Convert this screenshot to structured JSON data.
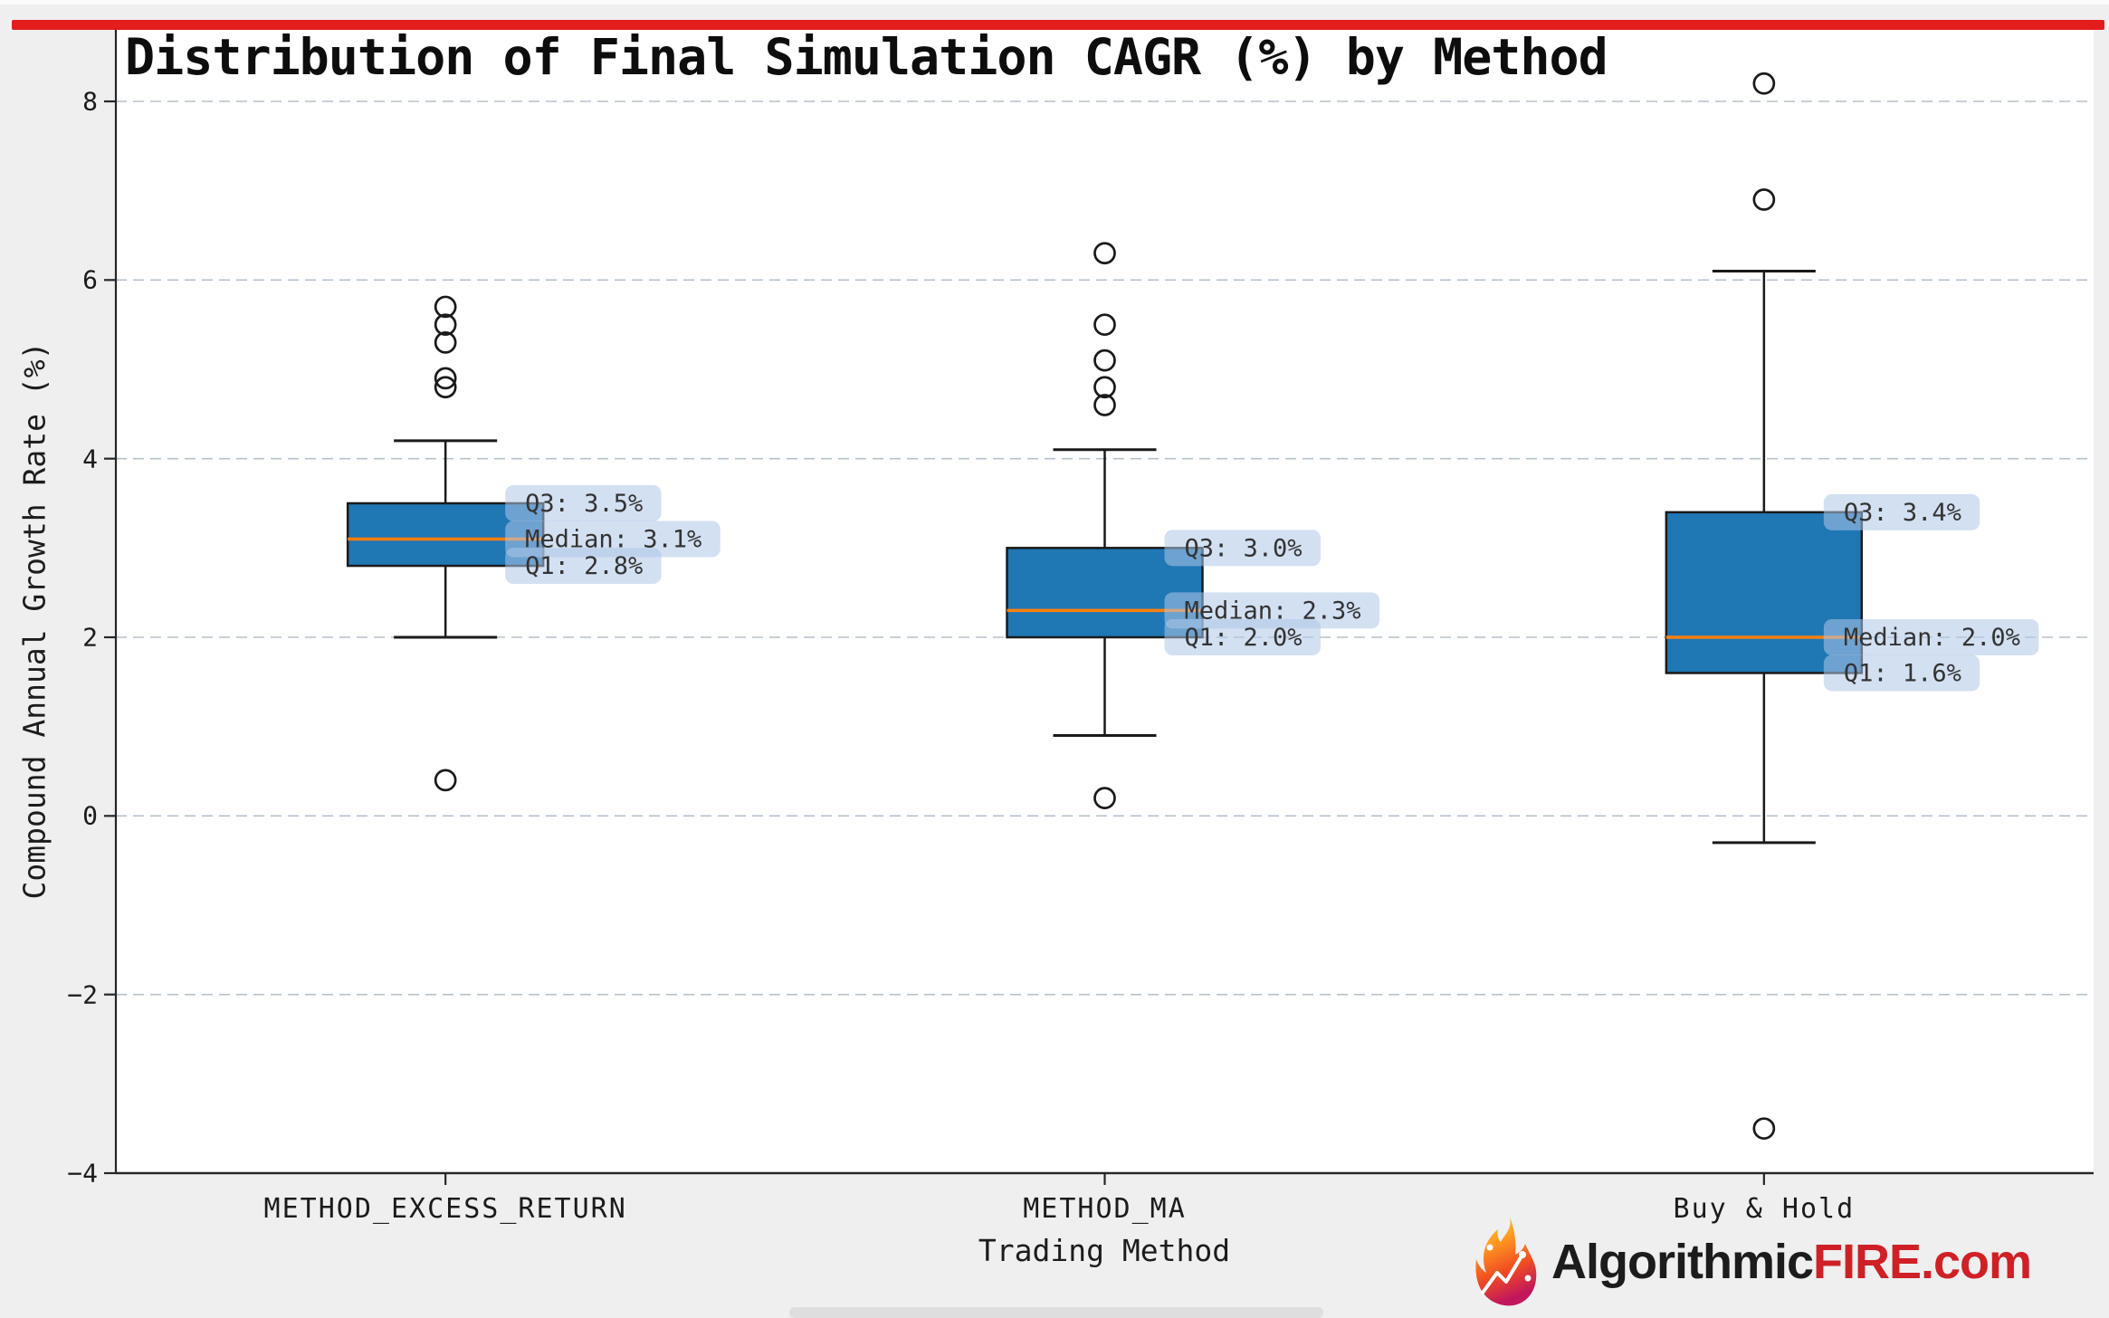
{
  "page": {
    "accent_bar_color": "#e31c1c",
    "background_color": "#efefef",
    "plot_background": "#ffffff"
  },
  "watermark": {
    "icon": "flame-icon",
    "brand_dark": "Algorithmic",
    "brand_red": "FIRE.com"
  },
  "chart_data": {
    "type": "box",
    "title": "Distribution of Final Simulation CAGR (%) by Method",
    "xlabel": "Trading Method",
    "ylabel": "Compound Annual Growth Rate (%)",
    "ylim": [
      -4,
      8
    ],
    "yticks": [
      8,
      6,
      4,
      2,
      0,
      -2,
      -4
    ],
    "grid": "horizontal dashed",
    "legend": "none",
    "categories": [
      "METHOD_EXCESS_RETURN",
      "METHOD_MA",
      "Buy & Hold"
    ],
    "series": [
      {
        "category": "METHOD_EXCESS_RETURN",
        "whisker_low": 2.0,
        "q1": 2.8,
        "median": 3.1,
        "q3": 3.5,
        "whisker_high": 4.2,
        "outliers": [
          5.7,
          5.5,
          5.3,
          4.9,
          4.8,
          0.4
        ],
        "annotations": [
          {
            "text": "Q3: 3.5%",
            "value": 3.5
          },
          {
            "text": "Median: 3.1%",
            "value": 3.1
          },
          {
            "text": "Q1: 2.8%",
            "value": 2.8
          }
        ]
      },
      {
        "category": "METHOD_MA",
        "whisker_low": 0.9,
        "q1": 2.0,
        "median": 2.3,
        "q3": 3.0,
        "whisker_high": 4.1,
        "outliers": [
          6.3,
          5.5,
          5.1,
          4.8,
          4.6,
          0.2
        ],
        "annotations": [
          {
            "text": "Q3: 3.0%",
            "value": 3.0
          },
          {
            "text": "Median: 2.3%",
            "value": 2.3
          },
          {
            "text": "Q1: 2.0%",
            "value": 2.0
          }
        ]
      },
      {
        "category": "Buy & Hold",
        "whisker_low": -0.3,
        "q1": 1.6,
        "median": 2.0,
        "q3": 3.4,
        "whisker_high": 6.1,
        "outliers": [
          8.2,
          6.9,
          -3.5
        ],
        "annotations": [
          {
            "text": "Q3: 3.4%",
            "value": 3.4
          },
          {
            "text": "Median: 2.0%",
            "value": 2.0
          },
          {
            "text": "Q1: 1.6%",
            "value": 1.6
          }
        ]
      }
    ],
    "colors": {
      "box_fill": "#1f77b4",
      "box_edge": "#1a1a1a",
      "median_line": "#ff7f0e",
      "whisker": "#1a1a1a",
      "gridline": "#b5c1ce",
      "annotation_bg": "#aec7e8",
      "annotation_text": "#333333",
      "spine": "#262626"
    }
  }
}
